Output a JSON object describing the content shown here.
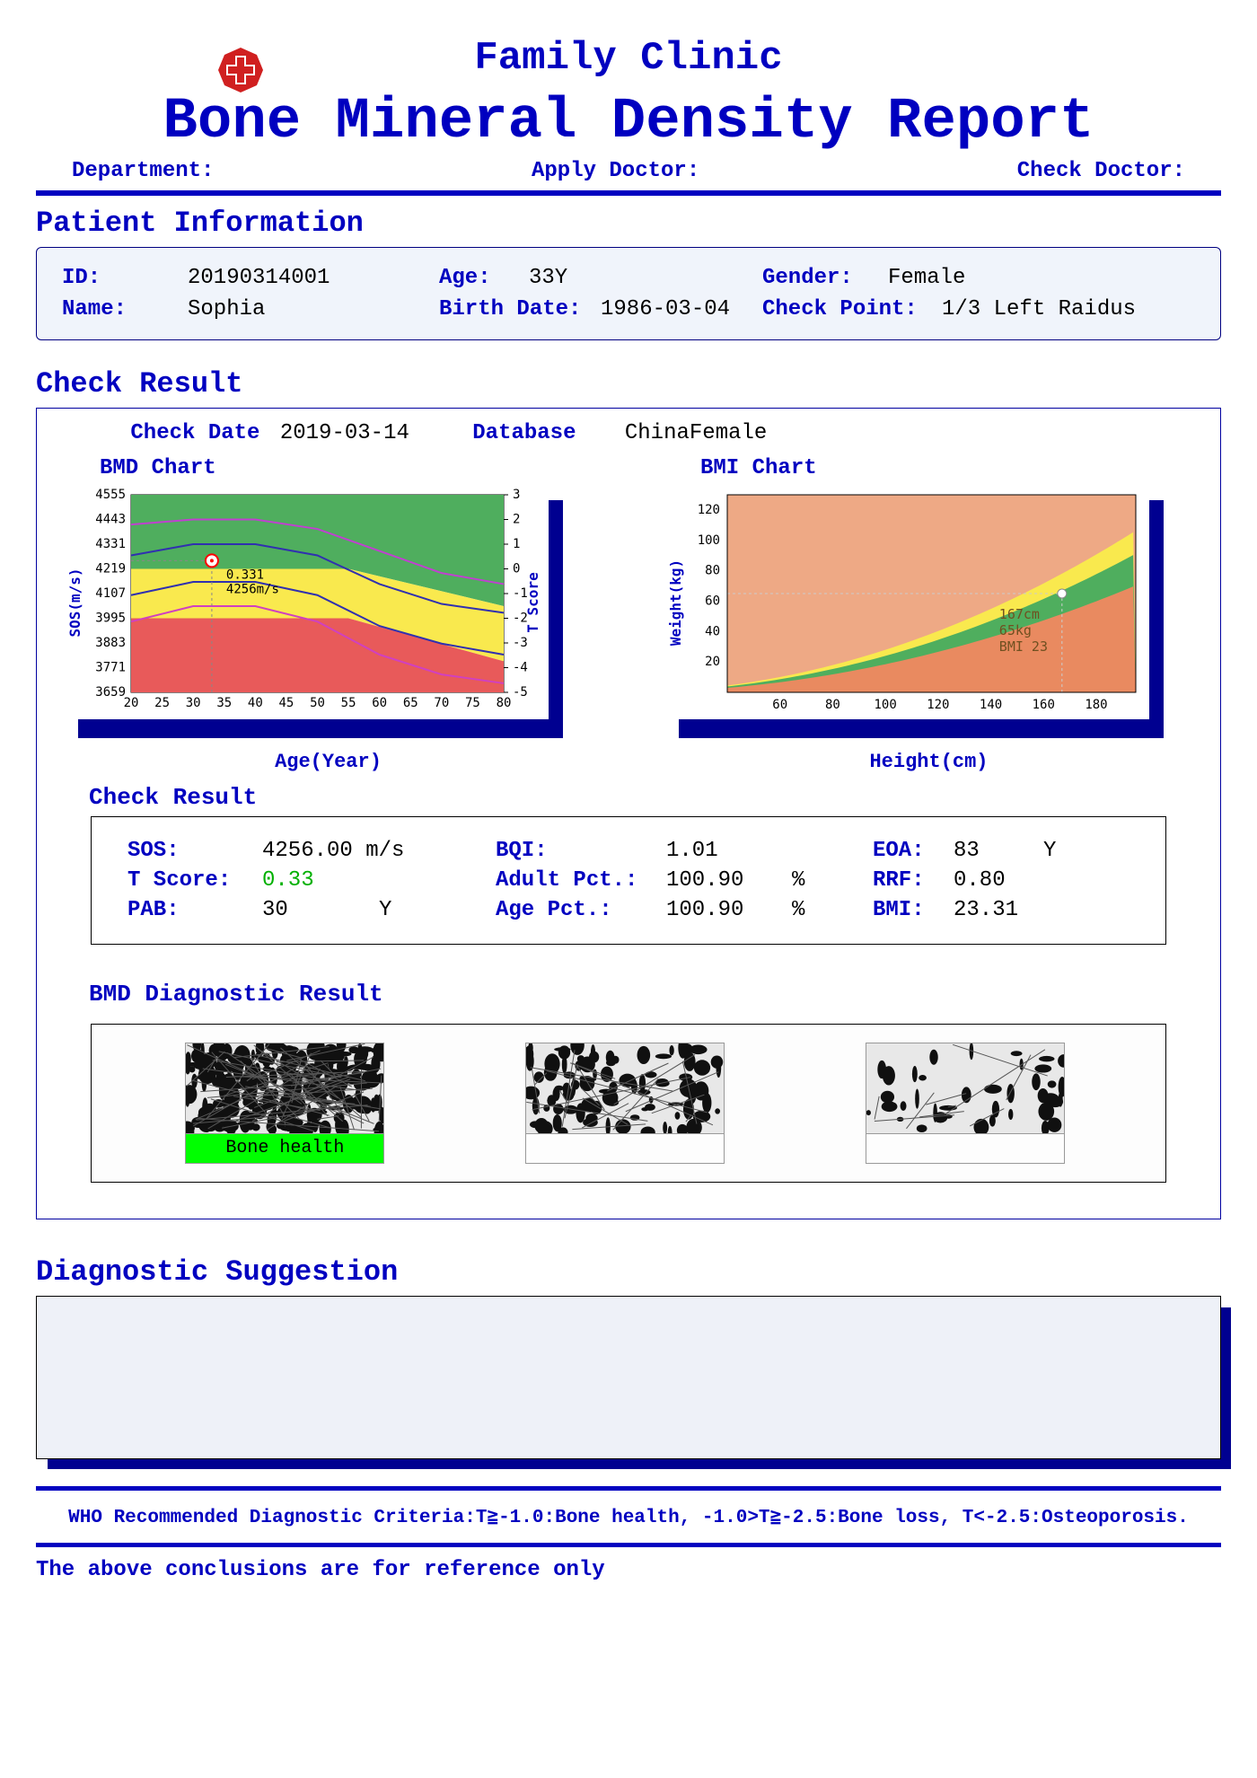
{
  "header": {
    "clinic_name": "Family Clinic",
    "report_title": "Bone Mineral Density Report",
    "department_label": "Department:",
    "apply_doctor_label": "Apply Doctor:",
    "check_doctor_label": "Check Doctor:",
    "logo_color_outer": "#d02020",
    "logo_color_inner": "#ffffff"
  },
  "patient_section": {
    "title": "Patient Information",
    "id_label": "ID:",
    "id_value": "20190314001",
    "age_label": "Age:",
    "age_value": "33Y",
    "gender_label": "Gender:",
    "gender_value": "Female",
    "name_label": "Name:",
    "name_value": "Sophia",
    "birth_label": "Birth Date:",
    "birth_value": "1986-03-04",
    "checkpoint_label": "Check Point:",
    "checkpoint_value": "1/3 Left Raidus"
  },
  "check_section": {
    "title": "Check Result",
    "check_date_label": "Check Date",
    "check_date_value": "2019-03-14",
    "database_label": "Database",
    "database_value": "ChinaFemale",
    "bmd_chart": {
      "title": "BMD Chart",
      "y_label": "SOS(m/s)",
      "y2_label": "T Score",
      "x_label": "Age(Year)",
      "y_min": 3659,
      "y_max": 4555,
      "y_step": 112,
      "y_ticks": [
        3659,
        3771,
        3883,
        3995,
        4107,
        4219,
        4331,
        4443,
        4555
      ],
      "y2_ticks": [
        -5,
        -4,
        -3,
        -2,
        -1,
        0,
        1,
        2,
        3
      ],
      "x_min": 20,
      "x_max": 80,
      "x_step": 5,
      "x_ticks": [
        20,
        25,
        30,
        35,
        40,
        45,
        50,
        55,
        60,
        65,
        70,
        75,
        80
      ],
      "zone_colors": {
        "green": "#4fae5e",
        "yellow": "#f9e94e",
        "red": "#e85a5a"
      },
      "marker": {
        "age": 33,
        "sos": 4256,
        "tscore": 0.33,
        "sos_text": "4256m/s",
        "tscore_text": "0.331",
        "color": "#ff0000"
      },
      "line_colors": {
        "top": "#c040d0",
        "mid1": "#3030b0",
        "mid2": "#3030b0",
        "bottom": "#d040c0"
      },
      "background": "#ffffff"
    },
    "bmi_chart": {
      "title": "BMI Chart",
      "y_label": "Weight(kg)",
      "x_label": "Height(cm)",
      "y_ticks": [
        20,
        40,
        60,
        80,
        100,
        120
      ],
      "x_ticks": [
        60,
        80,
        100,
        120,
        140,
        160,
        180
      ],
      "zone_colors": {
        "under": "#e98a60",
        "normal": "#4fae5e",
        "over": "#f9e94e",
        "obese": "#eea985"
      },
      "marker": {
        "height": 167,
        "weight": 65,
        "bmi": 23,
        "height_text": "167cm",
        "weight_text": "65kg",
        "bmi_text": "BMI 23",
        "color": "#ffffff"
      },
      "background": "#ffffff"
    },
    "results": {
      "title": "Check Result",
      "sos_label": "SOS:",
      "sos_value": "4256.00 m/s",
      "tscore_label": "T Score:",
      "tscore_value": "0.33",
      "pab_label": "PAB:",
      "pab_value": "30",
      "pab_unit": "Y",
      "bqi_label": "BQI:",
      "bqi_value": "1.01",
      "adultpct_label": "Adult Pct.:",
      "adultpct_value": "100.90",
      "adultpct_unit": "%",
      "agepct_label": "Age Pct.:",
      "agepct_value": "100.90",
      "agepct_unit": "%",
      "eoa_label": "EOA:",
      "eoa_value": "83",
      "eoa_unit": "Y",
      "rrf_label": "RRF:",
      "rrf_value": "0.80",
      "bmi_label": "BMI:",
      "bmi_value": "23.31"
    },
    "diagnostic": {
      "title": "BMD Diagnostic Result",
      "items": [
        {
          "label": "Bone health",
          "selected": true
        },
        {
          "label": "",
          "selected": false
        },
        {
          "label": "",
          "selected": false
        }
      ],
      "selected_background": "#00ff00"
    }
  },
  "suggestion_section": {
    "title": "Diagnostic Suggestion"
  },
  "footer": {
    "criteria": "WHO Recommended Diagnostic Criteria:T≧-1.0:Bone health, -1.0>T≧-2.5:Bone loss, T<-2.5:Osteoporosis.",
    "disclaimer": "The above conclusions are for reference only"
  },
  "colors": {
    "primary_blue": "#0000c0",
    "shadow_blue": "#000090",
    "info_bg": "#f0f4fb",
    "t_green": "#00b000"
  }
}
